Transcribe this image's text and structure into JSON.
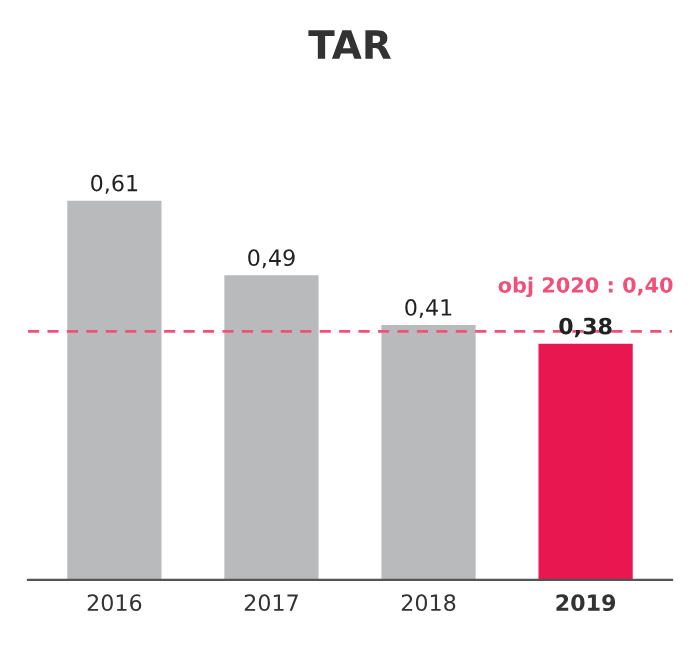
{
  "chart_data": {
    "type": "bar",
    "title": "TAR",
    "categories": [
      "2016",
      "2017",
      "2018",
      "2019"
    ],
    "values": [
      0.61,
      0.49,
      0.41,
      0.38
    ],
    "colors": [
      "#b9babc",
      "#b9babc",
      "#b9babc",
      "#e8174f"
    ],
    "value_labels": [
      "0,61",
      "0,49",
      "0,41",
      "0,38"
    ],
    "ref_lines": [
      {
        "axis": "y",
        "value": 0.4,
        "label": "obj 2020 : 0,40",
        "color": "#f0507a",
        "line_style": "dashed"
      }
    ],
    "grid": false
  }
}
